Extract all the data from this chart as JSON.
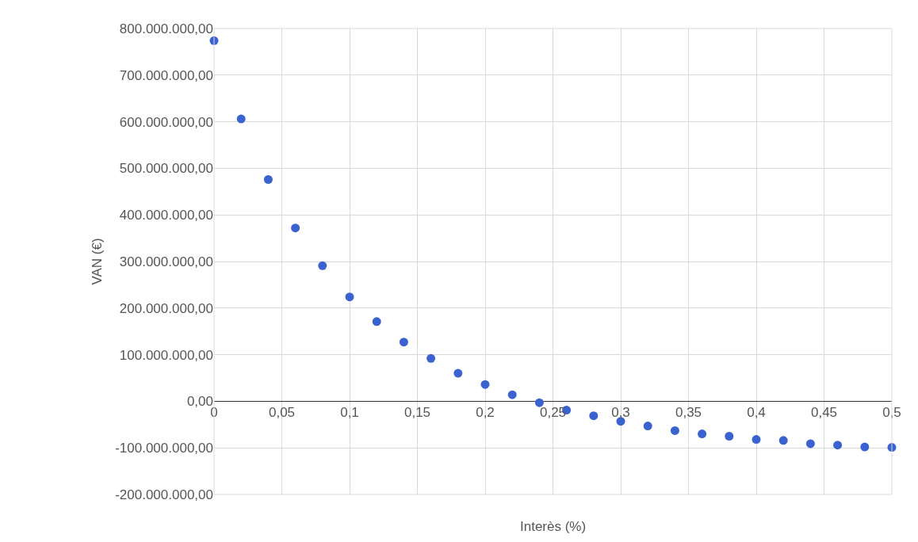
{
  "chart_data": {
    "type": "scatter",
    "xlabel": "Interès (%)",
    "ylabel": "VAN (€)",
    "x": [
      0,
      0.02,
      0.04,
      0.06,
      0.08,
      0.1,
      0.12,
      0.14,
      0.16,
      0.18,
      0.2,
      0.22,
      0.24,
      0.26,
      0.28,
      0.3,
      0.32,
      0.34,
      0.36,
      0.38,
      0.4,
      0.42,
      0.44,
      0.46,
      0.48,
      0.5
    ],
    "values": [
      774000000,
      606000000,
      476000000,
      372000000,
      291000000,
      224000000,
      171000000,
      127000000,
      92000000,
      60000000,
      36000000,
      14000000,
      -3000000,
      -19000000,
      -31000000,
      -43000000,
      -53000000,
      -63000000,
      -70000000,
      -75000000,
      -82000000,
      -84000000,
      -91000000,
      -94000000,
      -98000000,
      -99000000
    ],
    "color": "#3b63cf",
    "marker": "circle",
    "grid": true,
    "xlim": [
      0,
      0.5
    ],
    "ylim": [
      -200000000,
      800000000
    ],
    "xticks": [
      0,
      {
        "value": 0.05,
        "label": "0,05"
      },
      {
        "value": 0.1,
        "label": "0,1"
      },
      {
        "value": 0.15,
        "label": "0,15"
      },
      {
        "value": 0.2,
        "label": "0,2"
      },
      {
        "value": 0.25,
        "label": "0,25"
      },
      {
        "value": 0.3,
        "label": "0,3"
      },
      {
        "value": 0.35,
        "label": "0,35"
      },
      {
        "value": 0.4,
        "label": "0,4"
      },
      {
        "value": 0.45,
        "label": "0,45"
      },
      {
        "value": 0.5,
        "label": "0,5"
      }
    ],
    "yticks": [
      {
        "value": -200000000,
        "label": "-200.000.000,00"
      },
      {
        "value": -100000000,
        "label": "-100.000.000,00"
      },
      {
        "value": 0,
        "label": "0,00"
      },
      {
        "value": 100000000,
        "label": "100.000.000,00"
      },
      {
        "value": 200000000,
        "label": "200.000.000,00"
      },
      {
        "value": 300000000,
        "label": "300.000.000,00"
      },
      {
        "value": 400000000,
        "label": "400.000.000,00"
      },
      {
        "value": 500000000,
        "label": "500.000.000,00"
      },
      {
        "value": 600000000,
        "label": "600.000.000,00"
      },
      {
        "value": 700000000,
        "label": "700.000.000,00"
      },
      {
        "value": 800000000,
        "label": "800.000.000,00"
      }
    ]
  }
}
